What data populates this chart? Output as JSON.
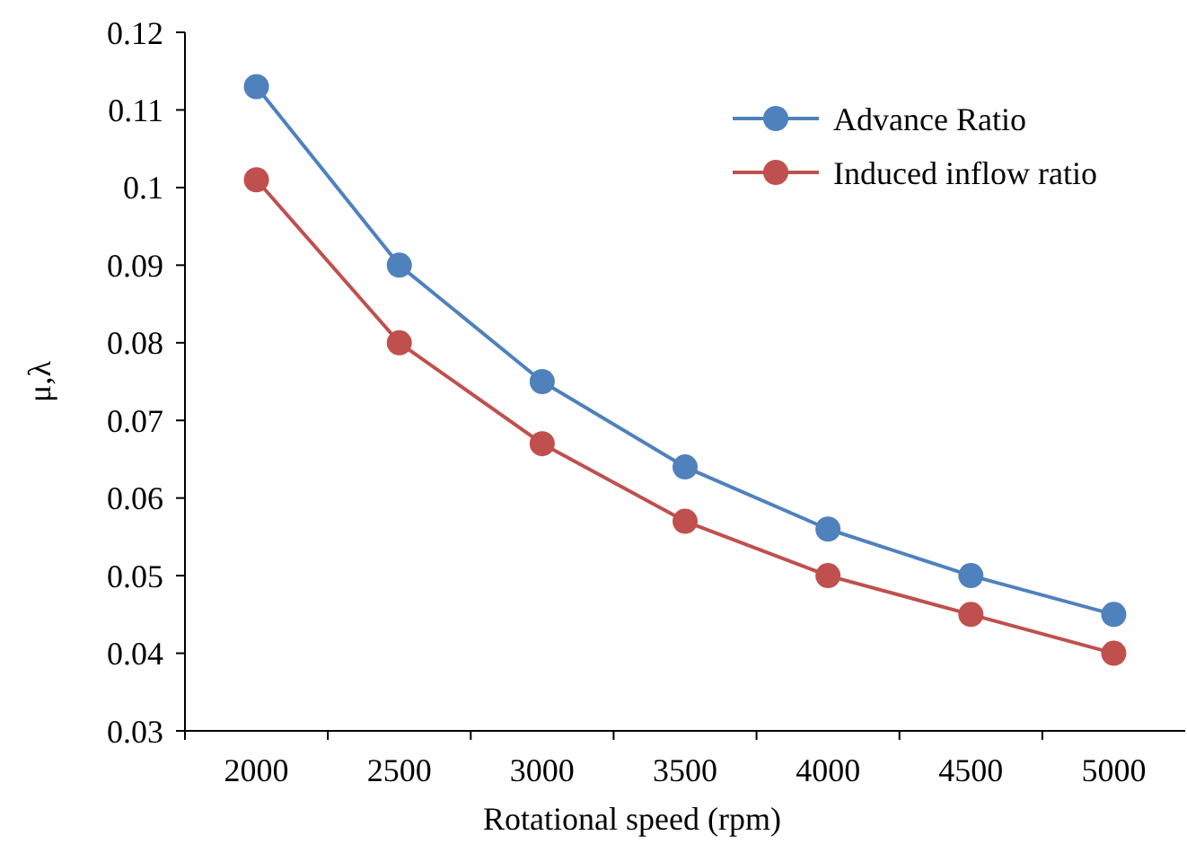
{
  "chart_data": {
    "type": "line",
    "xlabel": "Rotational speed (rpm)",
    "ylabel": "μ,λ",
    "categories": [
      "2000",
      "2500",
      "3000",
      "3500",
      "4000",
      "4500",
      "5000"
    ],
    "series": [
      {
        "name": "Advance Ratio",
        "color": "#4f81bd",
        "values": [
          0.113,
          0.09,
          0.075,
          0.064,
          0.056,
          0.05,
          0.045
        ]
      },
      {
        "name": "Induced inflow ratio",
        "color": "#c0504d",
        "values": [
          0.101,
          0.08,
          0.067,
          0.057,
          0.05,
          0.045,
          0.04
        ]
      }
    ],
    "ylim": [
      0.03,
      0.12
    ],
    "yticks": [
      0.03,
      0.04,
      0.05,
      0.06,
      0.07,
      0.08,
      0.09,
      0.1,
      0.11,
      0.12
    ],
    "grid": false,
    "legend": "top right",
    "marker": "circle",
    "line_style": "solid"
  }
}
